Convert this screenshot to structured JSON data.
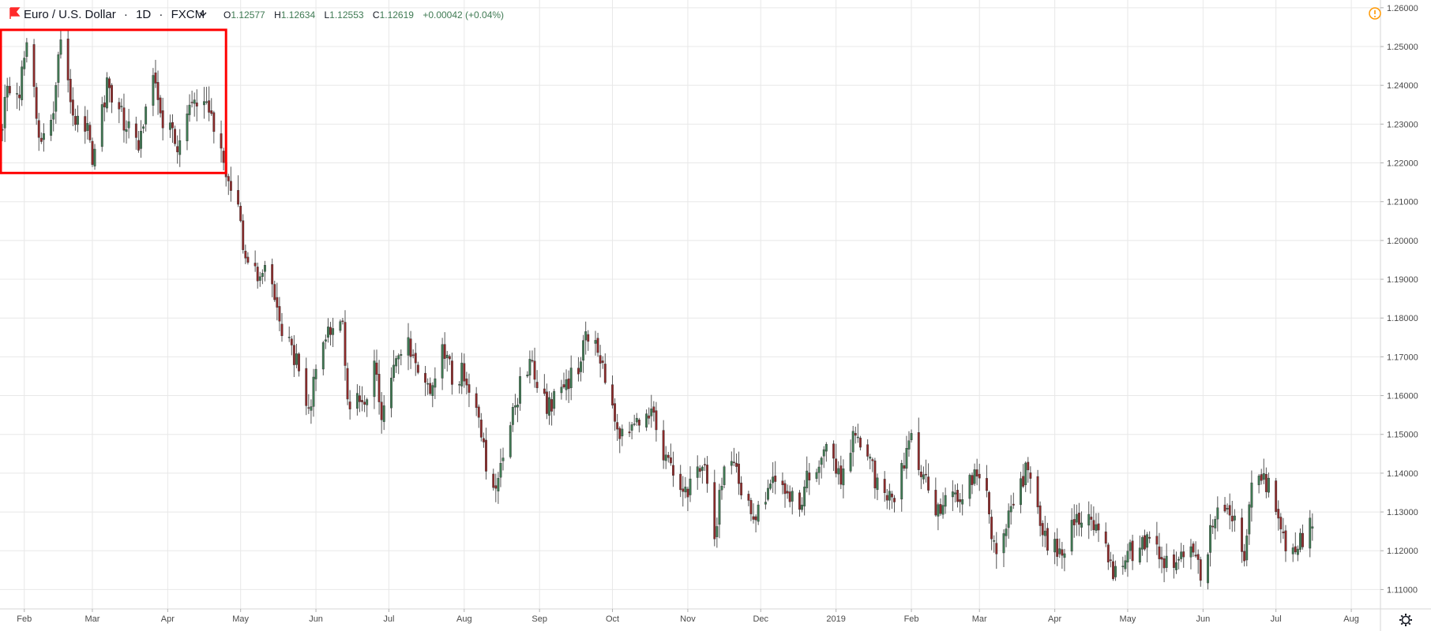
{
  "legend": {
    "symbol": "Euro / U.S. Dollar",
    "separator": "·",
    "interval": "1D",
    "source": "FXCM",
    "open_key": "O",
    "open": "1.12577",
    "high_key": "H",
    "high": "1.12634",
    "low_key": "L",
    "low": "1.12553",
    "close_key": "C",
    "close": "1.12619",
    "change": "+0.00042 (+0.04%)",
    "icons": [
      "flag-icon",
      "chevron-down-icon",
      "warning-icon",
      "gear-icon"
    ]
  },
  "colors": {
    "up": "#3f7a53",
    "down": "#8e2a2a",
    "wick": "#555555",
    "grid": "#e8e8e8",
    "highlight": "#ff0000",
    "axis_text": "#4a4a4a",
    "alert": "#ff9800"
  },
  "chart_data": {
    "type": "candlestick",
    "title": "",
    "xlabel": "",
    "ylabel": "",
    "ylim": [
      1.105,
      1.262
    ],
    "y_ticks": [
      "1.26000",
      "1.25000",
      "1.24000",
      "1.23000",
      "1.22000",
      "1.21000",
      "1.20000",
      "1.19000",
      "1.18000",
      "1.17000",
      "1.16000",
      "1.15000",
      "1.14000",
      "1.13000",
      "1.12000",
      "1.11000"
    ],
    "x_labels": [
      "Feb",
      "Mar",
      "Apr",
      "May",
      "Jun",
      "Jul",
      "Aug",
      "Sep",
      "Oct",
      "Nov",
      "Dec",
      "2019",
      "Feb",
      "Mar",
      "Apr",
      "May",
      "Jun",
      "Jul",
      "Aug"
    ],
    "x_range": [
      "2018-01-22",
      "2019-08-13"
    ],
    "x_label_dates": [
      "2018-02-01",
      "2018-03-01",
      "2018-04-01",
      "2018-05-01",
      "2018-06-01",
      "2018-07-01",
      "2018-08-01",
      "2018-09-01",
      "2018-10-01",
      "2018-11-01",
      "2018-12-01",
      "2019-01-01",
      "2019-02-01",
      "2019-03-01",
      "2019-04-01",
      "2019-05-01",
      "2019-06-01",
      "2019-07-01",
      "2019-08-01"
    ],
    "start_date": "2018-01-22",
    "end_date": "2019-07-16",
    "path": [
      [
        "2018-01-22",
        1.227
      ],
      [
        "2018-01-25",
        1.24
      ],
      [
        "2018-01-30",
        1.238
      ],
      [
        "2018-02-02",
        1.25
      ],
      [
        "2018-02-07",
        1.228
      ],
      [
        "2018-02-12",
        1.23
      ],
      [
        "2018-02-16",
        1.251
      ],
      [
        "2018-02-21",
        1.232
      ],
      [
        "2018-02-26",
        1.231
      ],
      [
        "2018-03-01",
        1.22
      ],
      [
        "2018-03-07",
        1.24
      ],
      [
        "2018-03-12",
        1.233
      ],
      [
        "2018-03-16",
        1.228
      ],
      [
        "2018-03-20",
        1.226
      ],
      [
        "2018-03-26",
        1.245
      ],
      [
        "2018-03-30",
        1.23
      ],
      [
        "2018-04-05",
        1.225
      ],
      [
        "2018-04-10",
        1.237
      ],
      [
        "2018-04-17",
        1.237
      ],
      [
        "2018-04-20",
        1.231
      ],
      [
        "2018-04-24",
        1.22
      ],
      [
        "2018-04-30",
        1.208
      ],
      [
        "2018-05-03",
        1.196
      ],
      [
        "2018-05-08",
        1.192
      ],
      [
        "2018-05-11",
        1.194
      ],
      [
        "2018-05-15",
        1.185
      ],
      [
        "2018-05-18",
        1.178
      ],
      [
        "2018-05-22",
        1.172
      ],
      [
        "2018-05-25",
        1.166
      ],
      [
        "2018-05-29",
        1.155
      ],
      [
        "2018-06-01",
        1.168
      ],
      [
        "2018-06-07",
        1.178
      ],
      [
        "2018-06-12",
        1.178
      ],
      [
        "2018-06-14",
        1.16
      ],
      [
        "2018-06-20",
        1.157
      ],
      [
        "2018-06-25",
        1.168
      ],
      [
        "2018-06-28",
        1.156
      ],
      [
        "2018-07-03",
        1.166
      ],
      [
        "2018-07-09",
        1.175
      ],
      [
        "2018-07-12",
        1.168
      ],
      [
        "2018-07-18",
        1.162
      ],
      [
        "2018-07-24",
        1.172
      ],
      [
        "2018-07-27",
        1.165
      ],
      [
        "2018-08-01",
        1.166
      ],
      [
        "2018-08-06",
        1.156
      ],
      [
        "2018-08-10",
        1.142
      ],
      [
        "2018-08-14",
        1.134
      ],
      [
        "2018-08-17",
        1.144
      ],
      [
        "2018-08-22",
        1.158
      ],
      [
        "2018-08-28",
        1.17
      ],
      [
        "2018-09-04",
        1.158
      ],
      [
        "2018-09-10",
        1.16
      ],
      [
        "2018-09-17",
        1.168
      ],
      [
        "2018-09-21",
        1.176
      ],
      [
        "2018-09-26",
        1.17
      ],
      [
        "2018-10-01",
        1.155
      ],
      [
        "2018-10-04",
        1.148
      ],
      [
        "2018-10-09",
        1.15
      ],
      [
        "2018-10-15",
        1.158
      ],
      [
        "2018-10-22",
        1.146
      ],
      [
        "2018-10-26",
        1.138
      ],
      [
        "2018-10-31",
        1.134
      ],
      [
        "2018-11-05",
        1.14
      ],
      [
        "2018-11-08",
        1.142
      ],
      [
        "2018-11-12",
        1.123
      ],
      [
        "2018-11-16",
        1.144
      ],
      [
        "2018-11-22",
        1.138
      ],
      [
        "2018-11-28",
        1.13
      ],
      [
        "2018-12-03",
        1.134
      ],
      [
        "2018-12-07",
        1.14
      ],
      [
        "2018-12-12",
        1.135
      ],
      [
        "2018-12-17",
        1.133
      ],
      [
        "2018-12-21",
        1.14
      ],
      [
        "2018-12-28",
        1.145
      ],
      [
        "2019-01-03",
        1.14
      ],
      [
        "2019-01-09",
        1.152
      ],
      [
        "2019-01-14",
        1.145
      ],
      [
        "2019-01-18",
        1.137
      ],
      [
        "2019-01-24",
        1.133
      ],
      [
        "2019-01-28",
        1.142
      ],
      [
        "2019-02-01",
        1.148
      ],
      [
        "2019-02-06",
        1.14
      ],
      [
        "2019-02-11",
        1.13
      ],
      [
        "2019-02-15",
        1.132
      ],
      [
        "2019-02-21",
        1.134
      ],
      [
        "2019-02-27",
        1.138
      ],
      [
        "2019-03-04",
        1.135
      ],
      [
        "2019-03-07",
        1.12
      ],
      [
        "2019-03-12",
        1.128
      ],
      [
        "2019-03-15",
        1.132
      ],
      [
        "2019-03-20",
        1.14
      ],
      [
        "2019-03-25",
        1.131
      ],
      [
        "2019-03-29",
        1.122
      ],
      [
        "2019-04-04",
        1.12
      ],
      [
        "2019-04-09",
        1.127
      ],
      [
        "2019-04-15",
        1.13
      ],
      [
        "2019-04-19",
        1.124
      ],
      [
        "2019-04-25",
        1.115
      ],
      [
        "2019-04-30",
        1.12
      ],
      [
        "2019-05-06",
        1.12
      ],
      [
        "2019-05-10",
        1.125
      ],
      [
        "2019-05-16",
        1.116
      ],
      [
        "2019-05-22",
        1.117
      ],
      [
        "2019-05-27",
        1.12
      ],
      [
        "2019-05-31",
        1.114
      ],
      [
        "2019-06-05",
        1.127
      ],
      [
        "2019-06-10",
        1.133
      ],
      [
        "2019-06-14",
        1.127
      ],
      [
        "2019-06-18",
        1.12
      ],
      [
        "2019-06-21",
        1.135
      ],
      [
        "2019-06-25",
        1.14
      ],
      [
        "2019-06-28",
        1.137
      ],
      [
        "2019-07-02",
        1.128
      ],
      [
        "2019-07-05",
        1.122
      ],
      [
        "2019-07-09",
        1.121
      ],
      [
        "2019-07-16",
        1.1262
      ]
    ],
    "highlight_box": {
      "x": [
        "2018-01-22",
        "2018-04-25"
      ],
      "y": [
        1.2174,
        1.2543
      ]
    }
  }
}
